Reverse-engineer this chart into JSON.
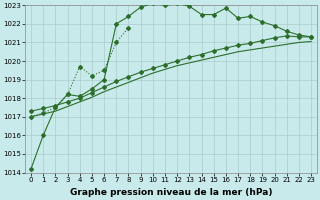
{
  "bg_color": "#c8eaea",
  "grid_color": "#aacccc",
  "line_color": "#2d6e2d",
  "ylabel_min": 1014,
  "ylabel_max": 1023,
  "xlabel": "Graphe pression niveau de la mer (hPa)",
  "xlabel_fontsize": 6.5,
  "tick_fontsize": 5.0,
  "line1_x": [
    0,
    1,
    2,
    3,
    4,
    5,
    6,
    7,
    8,
    9,
    10,
    11,
    12,
    13,
    14,
    15,
    16,
    17,
    18,
    19,
    20,
    21,
    22,
    23
  ],
  "line1_y": [
    1014.2,
    1016.0,
    1017.5,
    1018.2,
    1018.1,
    1018.5,
    1019.0,
    1022.0,
    1022.4,
    1022.9,
    1023.1,
    1023.0,
    1023.1,
    1022.95,
    1022.5,
    1022.5,
    1022.85,
    1022.3,
    1022.4,
    1022.1,
    1021.9,
    1021.6,
    1021.4,
    1021.3
  ],
  "line2_x": [
    0,
    1,
    2,
    3,
    4,
    5,
    6,
    7,
    8
  ],
  "line2_y": [
    1017.0,
    1017.2,
    1017.5,
    1018.2,
    1019.7,
    1019.2,
    1019.5,
    1021.0,
    1021.8
  ],
  "line3_x": [
    0,
    1,
    2,
    3,
    4,
    5,
    6,
    7,
    8,
    9,
    10,
    11,
    12,
    13,
    14,
    15,
    16,
    17,
    18,
    19,
    20,
    21,
    22,
    23
  ],
  "line3_y": [
    1017.3,
    1017.45,
    1017.6,
    1017.8,
    1018.0,
    1018.3,
    1018.6,
    1018.9,
    1019.15,
    1019.4,
    1019.6,
    1019.8,
    1020.0,
    1020.2,
    1020.35,
    1020.55,
    1020.7,
    1020.85,
    1020.95,
    1021.1,
    1021.25,
    1021.35,
    1021.3,
    1021.3
  ],
  "line4_x": [
    0,
    1,
    2,
    3,
    4,
    5,
    6,
    7,
    8,
    9,
    10,
    11,
    12,
    13,
    14,
    15,
    16,
    17,
    18,
    19,
    20,
    21,
    22,
    23
  ],
  "line4_y": [
    1017.0,
    1017.15,
    1017.3,
    1017.55,
    1017.8,
    1018.05,
    1018.35,
    1018.6,
    1018.85,
    1019.1,
    1019.35,
    1019.55,
    1019.75,
    1019.9,
    1020.05,
    1020.2,
    1020.35,
    1020.5,
    1020.6,
    1020.7,
    1020.8,
    1020.9,
    1021.0,
    1021.05
  ]
}
